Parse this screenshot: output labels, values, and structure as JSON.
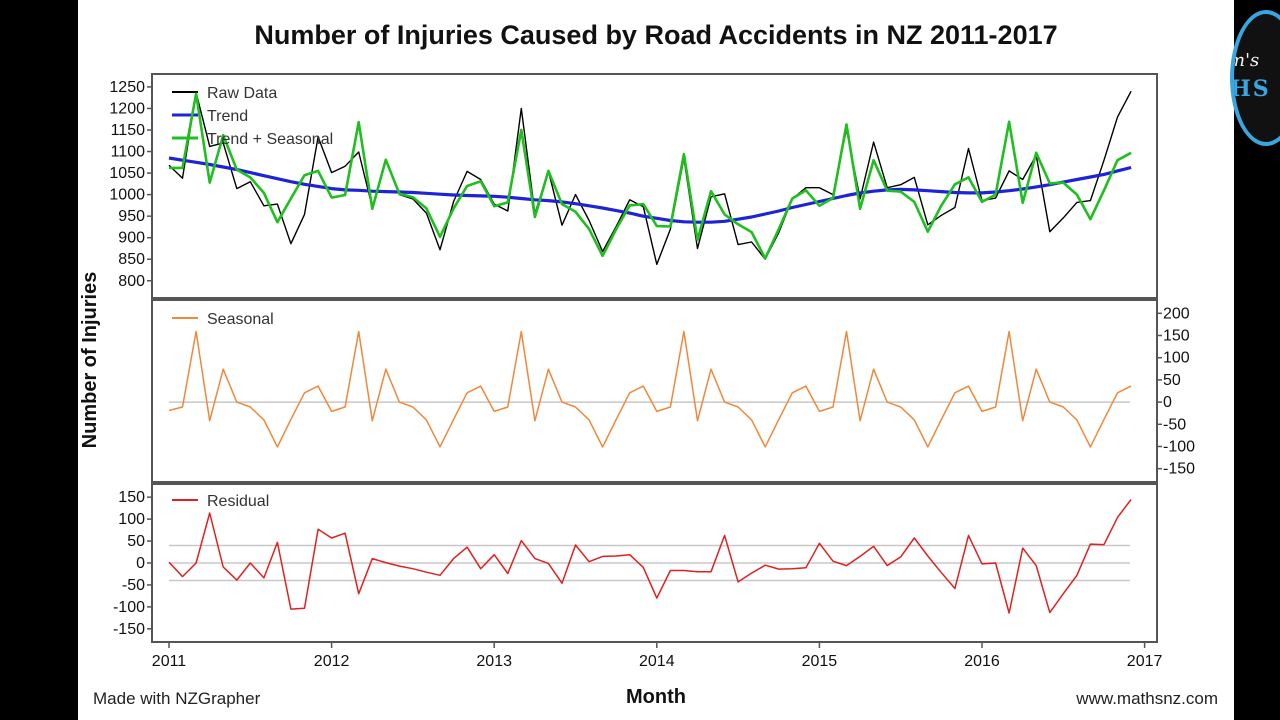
{
  "chart_data": [
    {
      "type": "line",
      "title": "Number of Injuries Caused by Road Accidents in NZ 2011-2017",
      "ylabel": "Number of Injuries",
      "ylim": [
        760,
        1280
      ],
      "yticks": [
        "800",
        "850",
        "900",
        "950",
        "1000",
        "1050",
        "1100",
        "1150",
        "1200",
        "1250"
      ],
      "legend_position": "top-left",
      "series": [
        {
          "name": "Raw Data",
          "color": "#000000",
          "values": [
            1068,
            1038,
            1237,
            1112,
            1120,
            1014,
            1030,
            974,
            978,
            886,
            954,
            1134,
            1051,
            1066,
            1099,
            970,
            1082,
            1000,
            990,
            957,
            872,
            984,
            1054,
            1035,
            978,
            962,
            1200,
            956,
            1055,
            929,
            1000,
            940,
            868,
            926,
            988,
            972,
            838,
            920,
            1084,
            875,
            995,
            1002,
            884,
            890,
            850,
            912,
            990,
            1016,
            1016,
            1000,
            1152,
            990,
            1122,
            1016,
            1023,
            1040,
            930,
            952,
            970,
            1107,
            986,
            992,
            1055,
            1035,
            1091,
            914,
            946,
            982,
            986,
            1080,
            1180,
            1240
          ]
        },
        {
          "name": "Trend",
          "color": "#1e22d8",
          "values": [
            1085,
            1080,
            1075,
            1070,
            1064,
            1058,
            1051,
            1044,
            1037,
            1030,
            1024,
            1019,
            1014,
            1011,
            1010,
            1008,
            1007,
            1006,
            1005,
            1003,
            1001,
            999,
            998,
            997,
            996,
            994,
            991,
            988,
            986,
            983,
            979,
            974,
            969,
            963,
            957,
            950,
            945,
            940,
            937,
            936,
            936,
            938,
            943,
            948,
            955,
            962,
            970,
            977,
            984,
            991,
            998,
            1004,
            1008,
            1011,
            1012,
            1011,
            1009,
            1007,
            1005,
            1004,
            1004,
            1006,
            1009,
            1013,
            1018,
            1023,
            1029,
            1035,
            1041,
            1047,
            1055,
            1063
          ]
        },
        {
          "name": "Trend + Seasonal",
          "color": "#1fbf1f",
          "values": [
            1062,
            1062,
            1234,
            1028,
            1138,
            1058,
            1040,
            1004,
            936,
            991,
            1045,
            1055,
            993,
            999,
            1168,
            967,
            1081,
            1002,
            994,
            968,
            902,
            968,
            1020,
            1031,
            973,
            982,
            1150,
            948,
            1055,
            978,
            960,
            920,
            858,
            920,
            975,
            978,
            927,
            926,
            1094,
            895,
            1008,
            954,
            931,
            913,
            852,
            920,
            991,
            1010,
            974,
            992,
            1163,
            967,
            1080,
            1009,
            1007,
            983,
            914,
            975,
            1024,
            1040,
            983,
            1000,
            1169,
            981,
            1097,
            1026,
            1028,
            1000,
            943,
            1010,
            1080,
            1097
          ]
        }
      ]
    },
    {
      "type": "line",
      "ylim": [
        -180,
        230
      ],
      "yticks": [
        "200",
        "150",
        "100",
        "50",
        "0",
        "-50",
        "-100",
        "-150"
      ],
      "legend_position": "top-left",
      "series": [
        {
          "name": "Seasonal",
          "color": "#f0883a",
          "values": [
            -19,
            -11,
            159,
            -42,
            74,
            0,
            -11,
            -40,
            -101,
            -39,
            21,
            36,
            -21,
            -11,
            159,
            -42,
            74,
            0,
            -11,
            -40,
            -101,
            -39,
            21,
            36,
            -21,
            -11,
            159,
            -42,
            74,
            0,
            -11,
            -40,
            -101,
            -39,
            21,
            36,
            -21,
            -11,
            159,
            -42,
            74,
            0,
            -11,
            -40,
            -101,
            -39,
            21,
            36,
            -21,
            -11,
            159,
            -42,
            74,
            0,
            -11,
            -40,
            -101,
            -39,
            21,
            36,
            -21,
            -11,
            159,
            -42,
            74,
            0,
            -11,
            -40,
            -101,
            -39,
            21,
            36
          ]
        }
      ]
    },
    {
      "type": "line",
      "xlabel": "Month",
      "ylim": [
        -180,
        180
      ],
      "yticks": [
        "150",
        "100",
        "50",
        "0",
        "-50",
        "-100",
        "-150"
      ],
      "x_ticks": [
        "2011",
        "2012",
        "2013",
        "2014",
        "2015",
        "2016",
        "2017"
      ],
      "legend_position": "top-left",
      "series": [
        {
          "name": "Residual",
          "color": "#e02020",
          "values": [
            2,
            -31,
            0,
            114,
            -9,
            -39,
            0,
            -34,
            47,
            -105,
            -103,
            77,
            57,
            68,
            -70,
            10,
            1,
            -7,
            -13,
            -21,
            -28,
            10,
            36,
            -13,
            19,
            -24,
            51,
            10,
            -1,
            -46,
            41,
            3,
            15,
            16,
            19,
            -10,
            -80,
            -17,
            -17,
            -20,
            -20,
            63,
            -43,
            -23,
            -5,
            -14,
            -13,
            -11,
            45,
            4,
            -6,
            15,
            38,
            -6,
            14,
            57,
            16,
            -22,
            -58,
            63,
            -2,
            0,
            -114,
            34,
            -6,
            -113,
            -70,
            -28,
            43,
            42,
            104,
            145
          ]
        }
      ]
    }
  ],
  "footer": {
    "left": "Made with NZGrapher",
    "right": "www.mathsnz.com"
  },
  "badge": {
    "line1": "m's",
    "line2": "HS"
  }
}
